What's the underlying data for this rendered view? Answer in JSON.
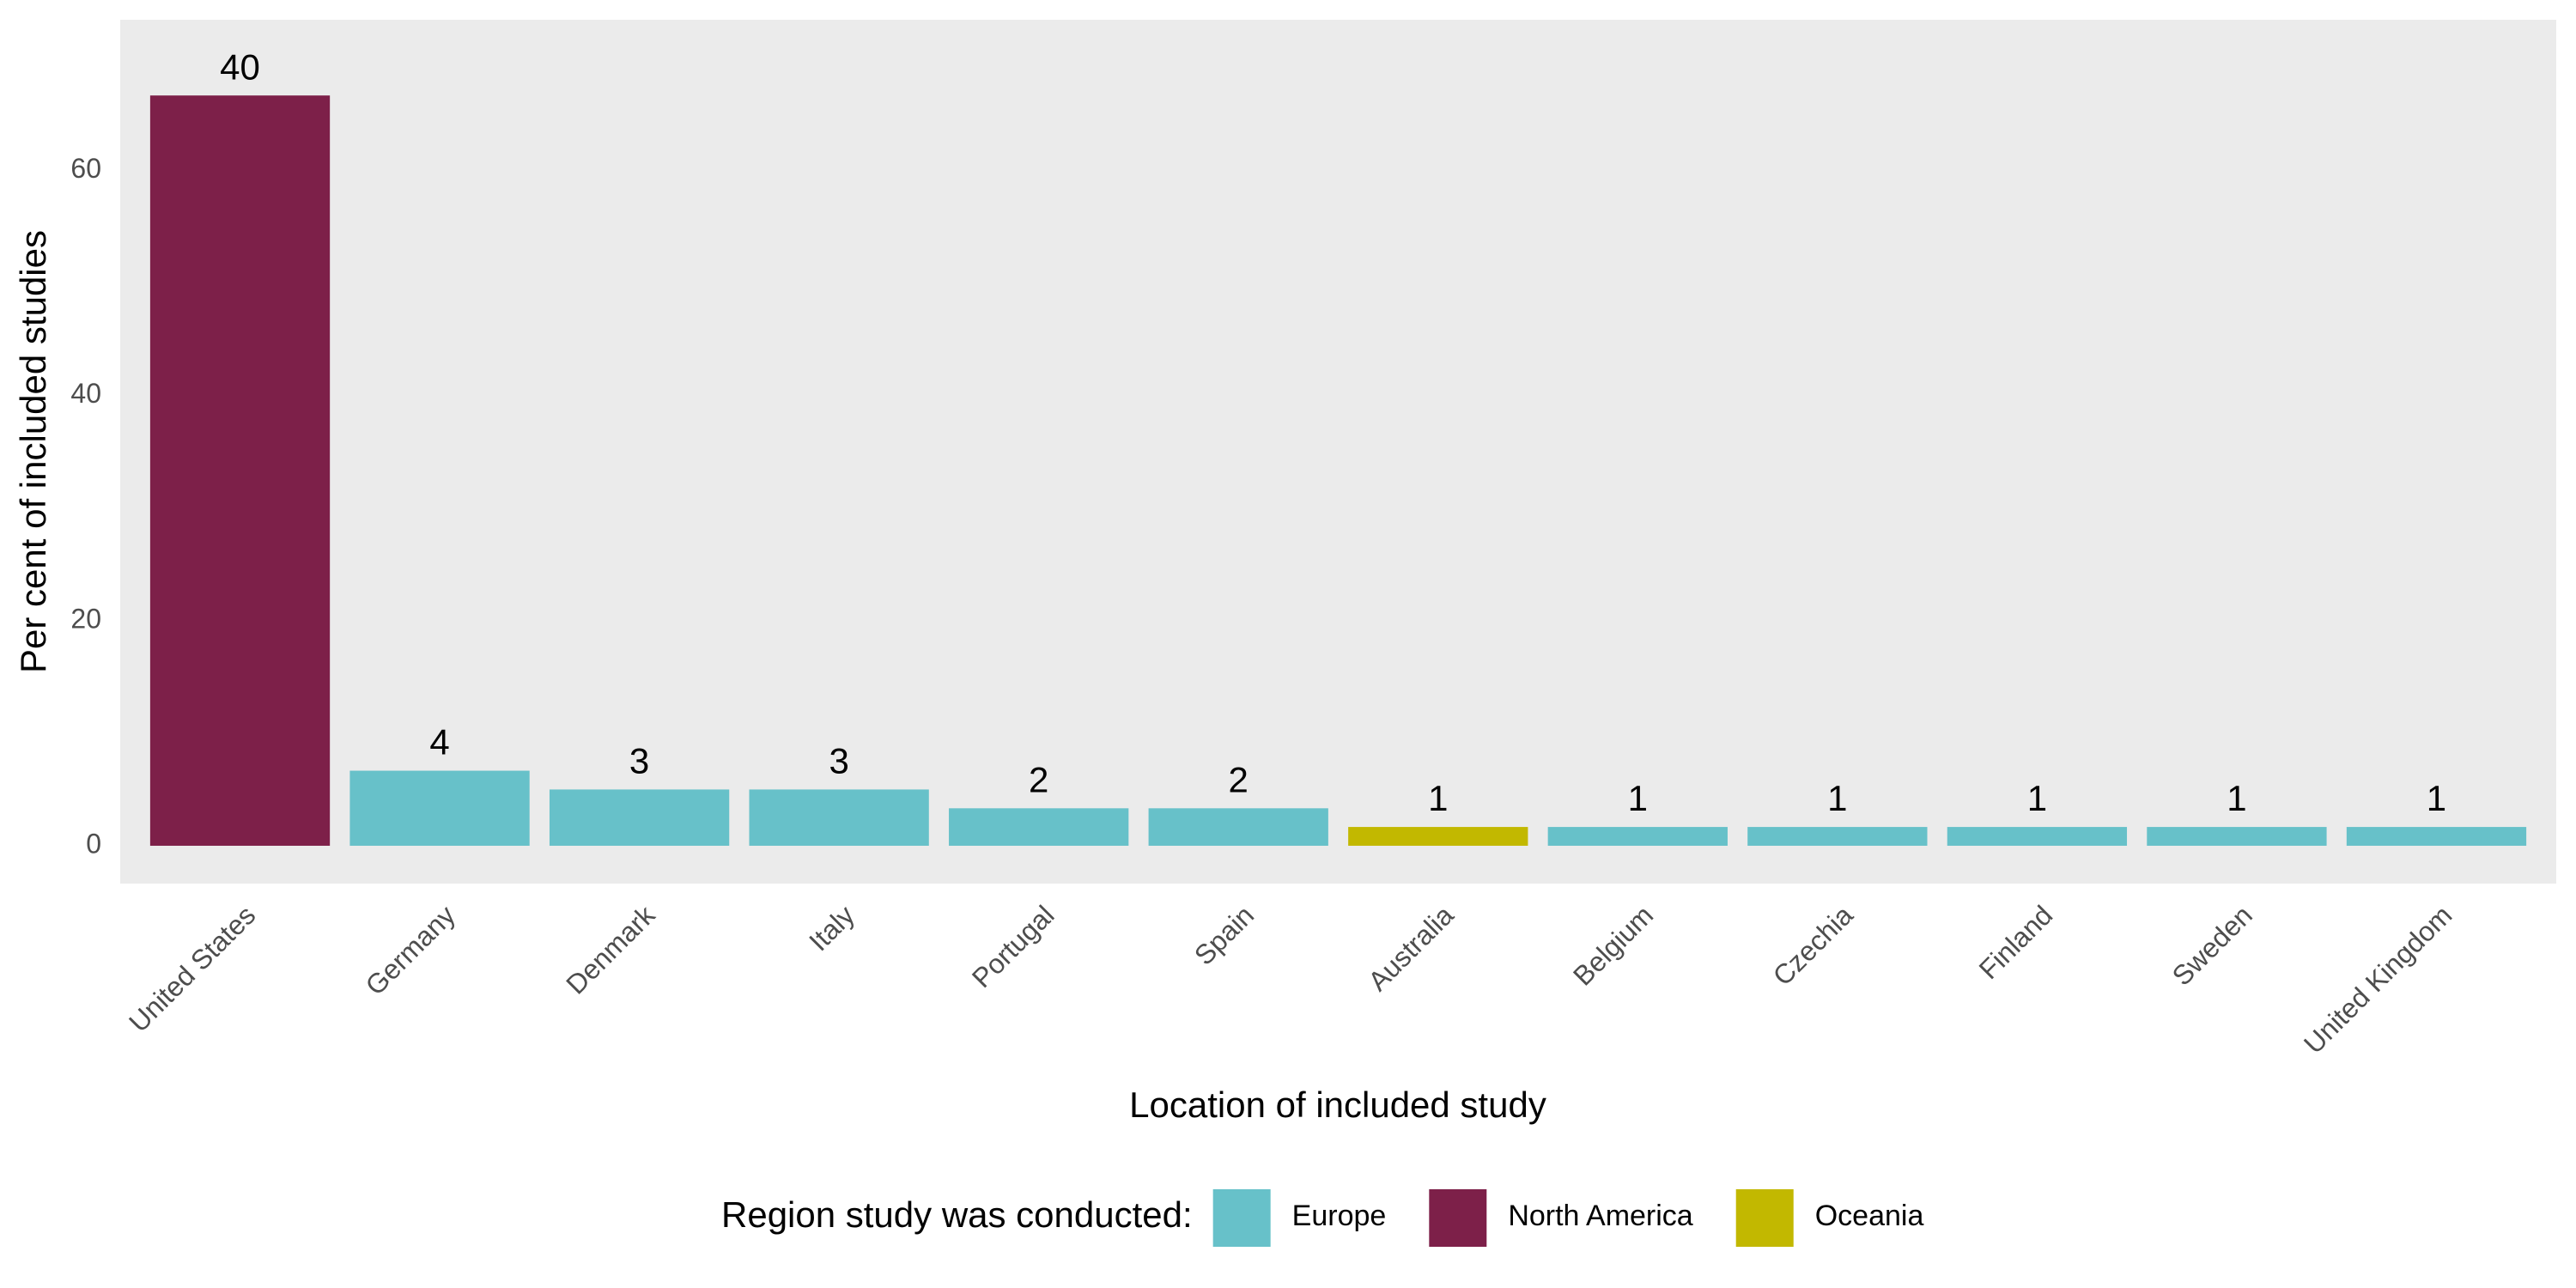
{
  "chart_data": {
    "type": "bar",
    "x_label": "Location of included study",
    "y_label": "Per cent of included studies",
    "categories": [
      "United States",
      "Germany",
      "Denmark",
      "Italy",
      "Portugal",
      "Spain",
      "Australia",
      "Belgium",
      "Czechia",
      "Finland",
      "Sweden",
      "United Kingdom"
    ],
    "series": [
      {
        "name": "Europe",
        "color": "#67c1c9",
        "values": [
          null,
          6.67,
          5,
          5,
          3.33,
          3.33,
          null,
          1.67,
          1.67,
          1.67,
          1.67,
          1.67
        ]
      },
      {
        "name": "North America",
        "color": "#7d2049",
        "values": [
          66.67,
          null,
          null,
          null,
          null,
          null,
          null,
          null,
          null,
          null,
          null,
          null
        ]
      },
      {
        "name": "Oceania",
        "color": "#c2b800",
        "values": [
          null,
          null,
          null,
          null,
          null,
          null,
          1.67,
          null,
          null,
          null,
          null,
          null
        ]
      }
    ],
    "counts": [
      40,
      4,
      3,
      3,
      2,
      2,
      1,
      1,
      1,
      1,
      1,
      1
    ],
    "legend_title": "Region study was conducted:",
    "legend_position": "bottom",
    "ylim": [
      -3.36,
      73.4
    ],
    "yticks": [
      0,
      20,
      40,
      60
    ],
    "grid": false
  }
}
